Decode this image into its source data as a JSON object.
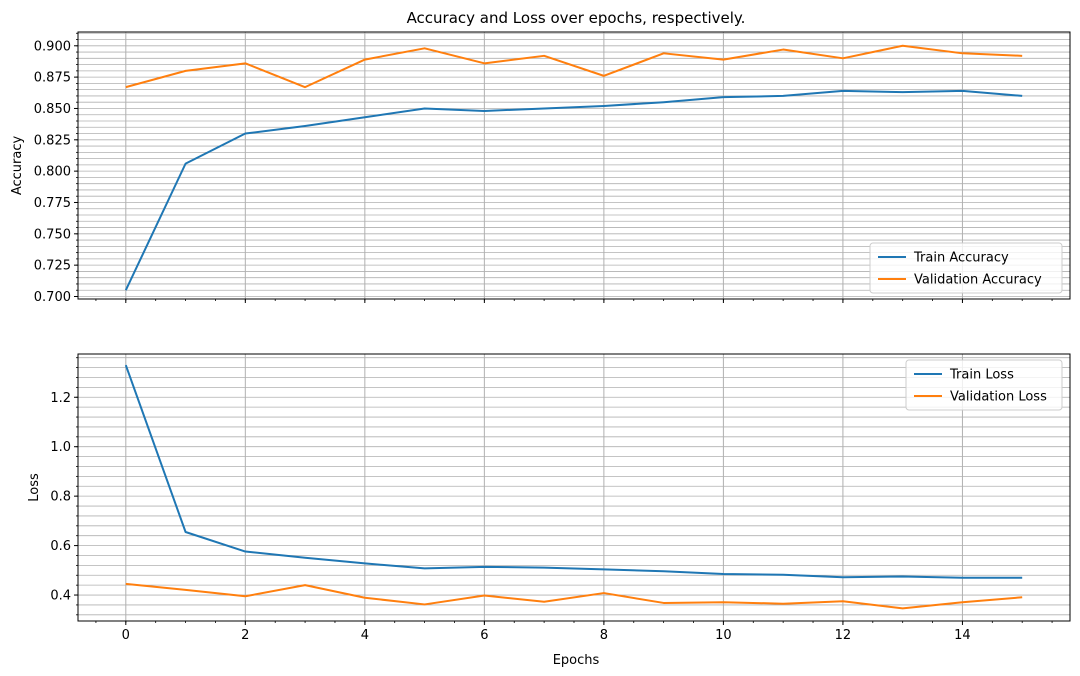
{
  "figure": {
    "title": "Accuracy and Loss over epochs, respectively.",
    "xlabel": "Epochs"
  },
  "colors": {
    "train": "#1f77b4",
    "validation": "#ff7f0e",
    "grid": "#b0b0b0"
  },
  "chart_data": [
    {
      "type": "line",
      "title": "Accuracy and Loss over epochs, respectively.",
      "xlabel": "",
      "ylabel": "Accuracy",
      "xlim": [
        -0.8,
        15.8
      ],
      "ylim": [
        0.698,
        0.911
      ],
      "xticks": [
        0,
        2,
        4,
        6,
        8,
        10,
        12,
        14
      ],
      "yticks": [
        0.7,
        0.725,
        0.75,
        0.775,
        0.8,
        0.825,
        0.85,
        0.875,
        0.9
      ],
      "ytick_labels": [
        "0.700",
        "0.725",
        "0.750",
        "0.775",
        "0.800",
        "0.825",
        "0.850",
        "0.875",
        "0.900"
      ],
      "grid": "major and minor",
      "legend_position": "lower-right",
      "x": [
        0,
        1,
        2,
        3,
        4,
        5,
        6,
        7,
        8,
        9,
        10,
        11,
        12,
        13,
        14,
        15
      ],
      "series": [
        {
          "name": "Train Accuracy",
          "values": [
            0.705,
            0.806,
            0.83,
            0.836,
            0.843,
            0.85,
            0.848,
            0.85,
            0.852,
            0.855,
            0.859,
            0.86,
            0.864,
            0.863,
            0.864,
            0.86
          ]
        },
        {
          "name": "Validation Accuracy",
          "values": [
            0.867,
            0.88,
            0.886,
            0.867,
            0.889,
            0.898,
            0.886,
            0.892,
            0.876,
            0.894,
            0.889,
            0.897,
            0.89,
            0.9,
            0.894,
            0.892
          ]
        }
      ]
    },
    {
      "type": "line",
      "title": "",
      "xlabel": "Epochs",
      "ylabel": "Loss",
      "xlim": [
        -0.8,
        15.8
      ],
      "ylim": [
        0.295,
        1.375
      ],
      "xticks": [
        0,
        2,
        4,
        6,
        8,
        10,
        12,
        14
      ],
      "yticks": [
        0.4,
        0.6,
        0.8,
        1.0,
        1.2
      ],
      "ytick_labels": [
        "0.4",
        "0.6",
        "0.8",
        "1.0",
        "1.2"
      ],
      "grid": "major and minor",
      "legend_position": "upper-right",
      "x": [
        0,
        1,
        2,
        3,
        4,
        5,
        6,
        7,
        8,
        9,
        10,
        11,
        12,
        13,
        14,
        15
      ],
      "series": [
        {
          "name": "Train Loss",
          "values": [
            1.33,
            0.655,
            0.576,
            0.551,
            0.528,
            0.508,
            0.514,
            0.511,
            0.504,
            0.496,
            0.485,
            0.482,
            0.472,
            0.475,
            0.47,
            0.47
          ]
        },
        {
          "name": "Validation Loss",
          "values": [
            0.445,
            0.421,
            0.395,
            0.44,
            0.389,
            0.362,
            0.398,
            0.373,
            0.408,
            0.368,
            0.371,
            0.365,
            0.375,
            0.346,
            0.371,
            0.391
          ]
        }
      ]
    }
  ]
}
